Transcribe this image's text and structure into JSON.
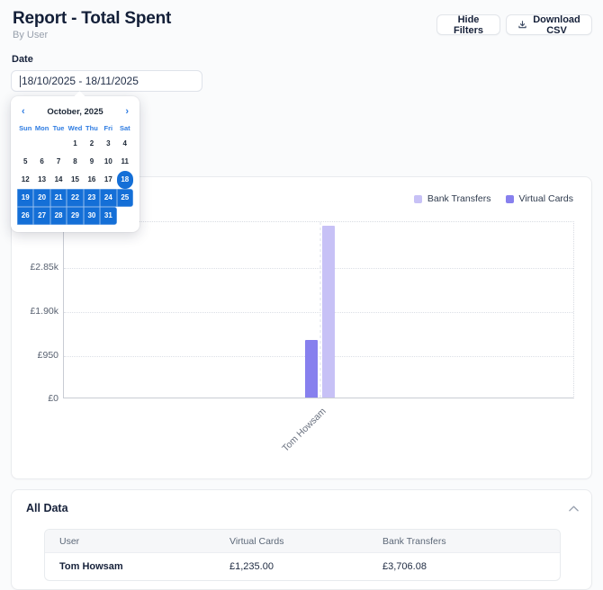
{
  "header": {
    "title": "Report - Total Spent",
    "subtitle": "By User",
    "hide_filters_label": "Hide Filters",
    "download_csv_label": "Download CSV"
  },
  "filters": {
    "date_label": "Date",
    "date_value": "18/10/2025 - 18/11/2025"
  },
  "calendar": {
    "month_label": "October, 2025",
    "prev_icon": "‹",
    "next_icon": "›",
    "weekdays": [
      "Sun",
      "Mon",
      "Tue",
      "Wed",
      "Thu",
      "Fri",
      "Sat"
    ],
    "days": [
      "",
      "",
      "",
      "1",
      "2",
      "3",
      "4",
      "5",
      "6",
      "7",
      "8",
      "9",
      "10",
      "11",
      "12",
      "13",
      "14",
      "15",
      "16",
      "17",
      "18",
      "19",
      "20",
      "21",
      "22",
      "23",
      "24",
      "25",
      "26",
      "27",
      "28",
      "29",
      "30",
      "31",
      ""
    ],
    "selected_start_day": "18",
    "range_days": "19-31"
  },
  "chart_data": {
    "type": "bar",
    "categories": [
      "Tom Howsam"
    ],
    "series": [
      {
        "name": "Virtual Cards",
        "values": [
          1235.0
        ],
        "color": "#8780ee"
      },
      {
        "name": "Bank Transfers",
        "values": [
          3706.08
        ],
        "color": "#c7c1f6"
      }
    ],
    "legend": [
      {
        "label": "Bank Transfers",
        "color": "#c7c1f6"
      },
      {
        "label": "Virtual Cards",
        "color": "#8780ee"
      }
    ],
    "yticks": [
      "£0",
      "£950",
      "£1.90k",
      "£2.85k"
    ],
    "ytick_values": [
      0,
      950,
      1900,
      2850
    ],
    "ylim": [
      0,
      3819
    ],
    "xlabel": "",
    "ylabel": "",
    "grid": "dotted",
    "legend_position": "top-right"
  },
  "all_data": {
    "title": "All Data",
    "table": {
      "headers": [
        "User",
        "Virtual Cards",
        "Bank Transfers"
      ],
      "rows": [
        {
          "user": "Tom Howsam",
          "virtual_cards": "£1,235.00",
          "bank_transfers": "£3,706.08"
        }
      ]
    }
  },
  "colors": {
    "accent_blue": "#146fd7",
    "bar_virtual_cards": "#8780ee",
    "bar_bank_transfers": "#c7c1f6",
    "heading_navy": "#16213a"
  }
}
